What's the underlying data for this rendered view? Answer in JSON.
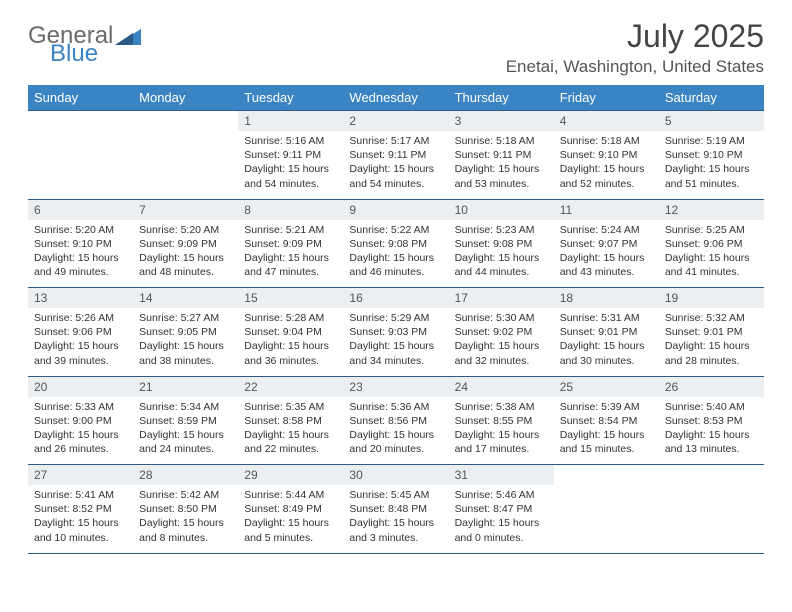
{
  "logo": {
    "word1": "General",
    "word2": "Blue"
  },
  "title": "July 2025",
  "location": "Enetai, Washington, United States",
  "colors": {
    "header_bg": "#3b84c4",
    "header_text": "#ffffff",
    "daynum_bg": "#eceff1",
    "rule": "#2a5a8a",
    "logo_gray": "#6b6b6b",
    "logo_blue": "#3b84c4"
  },
  "day_headers": [
    "Sunday",
    "Monday",
    "Tuesday",
    "Wednesday",
    "Thursday",
    "Friday",
    "Saturday"
  ],
  "weeks": [
    {
      "nums": [
        "",
        "",
        "1",
        "2",
        "3",
        "4",
        "5"
      ],
      "cells": [
        null,
        null,
        {
          "sunrise": "5:16 AM",
          "sunset": "9:11 PM",
          "daylight": "15 hours and 54 minutes."
        },
        {
          "sunrise": "5:17 AM",
          "sunset": "9:11 PM",
          "daylight": "15 hours and 54 minutes."
        },
        {
          "sunrise": "5:18 AM",
          "sunset": "9:11 PM",
          "daylight": "15 hours and 53 minutes."
        },
        {
          "sunrise": "5:18 AM",
          "sunset": "9:10 PM",
          "daylight": "15 hours and 52 minutes."
        },
        {
          "sunrise": "5:19 AM",
          "sunset": "9:10 PM",
          "daylight": "15 hours and 51 minutes."
        }
      ]
    },
    {
      "nums": [
        "6",
        "7",
        "8",
        "9",
        "10",
        "11",
        "12"
      ],
      "cells": [
        {
          "sunrise": "5:20 AM",
          "sunset": "9:10 PM",
          "daylight": "15 hours and 49 minutes."
        },
        {
          "sunrise": "5:20 AM",
          "sunset": "9:09 PM",
          "daylight": "15 hours and 48 minutes."
        },
        {
          "sunrise": "5:21 AM",
          "sunset": "9:09 PM",
          "daylight": "15 hours and 47 minutes."
        },
        {
          "sunrise": "5:22 AM",
          "sunset": "9:08 PM",
          "daylight": "15 hours and 46 minutes."
        },
        {
          "sunrise": "5:23 AM",
          "sunset": "9:08 PM",
          "daylight": "15 hours and 44 minutes."
        },
        {
          "sunrise": "5:24 AM",
          "sunset": "9:07 PM",
          "daylight": "15 hours and 43 minutes."
        },
        {
          "sunrise": "5:25 AM",
          "sunset": "9:06 PM",
          "daylight": "15 hours and 41 minutes."
        }
      ]
    },
    {
      "nums": [
        "13",
        "14",
        "15",
        "16",
        "17",
        "18",
        "19"
      ],
      "cells": [
        {
          "sunrise": "5:26 AM",
          "sunset": "9:06 PM",
          "daylight": "15 hours and 39 minutes."
        },
        {
          "sunrise": "5:27 AM",
          "sunset": "9:05 PM",
          "daylight": "15 hours and 38 minutes."
        },
        {
          "sunrise": "5:28 AM",
          "sunset": "9:04 PM",
          "daylight": "15 hours and 36 minutes."
        },
        {
          "sunrise": "5:29 AM",
          "sunset": "9:03 PM",
          "daylight": "15 hours and 34 minutes."
        },
        {
          "sunrise": "5:30 AM",
          "sunset": "9:02 PM",
          "daylight": "15 hours and 32 minutes."
        },
        {
          "sunrise": "5:31 AM",
          "sunset": "9:01 PM",
          "daylight": "15 hours and 30 minutes."
        },
        {
          "sunrise": "5:32 AM",
          "sunset": "9:01 PM",
          "daylight": "15 hours and 28 minutes."
        }
      ]
    },
    {
      "nums": [
        "20",
        "21",
        "22",
        "23",
        "24",
        "25",
        "26"
      ],
      "cells": [
        {
          "sunrise": "5:33 AM",
          "sunset": "9:00 PM",
          "daylight": "15 hours and 26 minutes."
        },
        {
          "sunrise": "5:34 AM",
          "sunset": "8:59 PM",
          "daylight": "15 hours and 24 minutes."
        },
        {
          "sunrise": "5:35 AM",
          "sunset": "8:58 PM",
          "daylight": "15 hours and 22 minutes."
        },
        {
          "sunrise": "5:36 AM",
          "sunset": "8:56 PM",
          "daylight": "15 hours and 20 minutes."
        },
        {
          "sunrise": "5:38 AM",
          "sunset": "8:55 PM",
          "daylight": "15 hours and 17 minutes."
        },
        {
          "sunrise": "5:39 AM",
          "sunset": "8:54 PM",
          "daylight": "15 hours and 15 minutes."
        },
        {
          "sunrise": "5:40 AM",
          "sunset": "8:53 PM",
          "daylight": "15 hours and 13 minutes."
        }
      ]
    },
    {
      "nums": [
        "27",
        "28",
        "29",
        "30",
        "31",
        "",
        ""
      ],
      "cells": [
        {
          "sunrise": "5:41 AM",
          "sunset": "8:52 PM",
          "daylight": "15 hours and 10 minutes."
        },
        {
          "sunrise": "5:42 AM",
          "sunset": "8:50 PM",
          "daylight": "15 hours and 8 minutes."
        },
        {
          "sunrise": "5:44 AM",
          "sunset": "8:49 PM",
          "daylight": "15 hours and 5 minutes."
        },
        {
          "sunrise": "5:45 AM",
          "sunset": "8:48 PM",
          "daylight": "15 hours and 3 minutes."
        },
        {
          "sunrise": "5:46 AM",
          "sunset": "8:47 PM",
          "daylight": "15 hours and 0 minutes."
        },
        null,
        null
      ]
    }
  ],
  "labels": {
    "sunrise": "Sunrise: ",
    "sunset": "Sunset: ",
    "daylight": "Daylight: "
  }
}
